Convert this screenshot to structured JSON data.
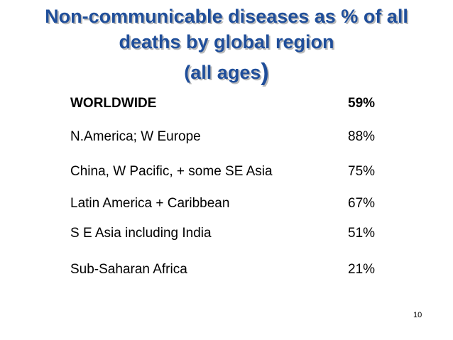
{
  "slide": {
    "title_line_1": "Non-communicable diseases as % of all",
    "title_line_2": "deaths by global region",
    "title_line_3_text": "(all ages",
    "title_line_3_paren": ")",
    "page_number": "10"
  },
  "rows": [
    {
      "label": "WORLDWIDE",
      "value": "59%",
      "bold": true
    },
    {
      "label": "N.America; W Europe",
      "value": "88%"
    },
    {
      "label": "China, W Pacific, + some SE Asia",
      "value": "75%"
    },
    {
      "label": "Latin America + Caribbean",
      "value": "67%"
    },
    {
      "label": "S E Asia including India",
      "value": "51%"
    },
    {
      "label": "Sub-Saharan Africa",
      "value": "21%"
    }
  ],
  "colors": {
    "title": "#1f4e9a",
    "title_shadow": "#b9b9b9",
    "text": "#000000",
    "background": "#ffffff"
  }
}
